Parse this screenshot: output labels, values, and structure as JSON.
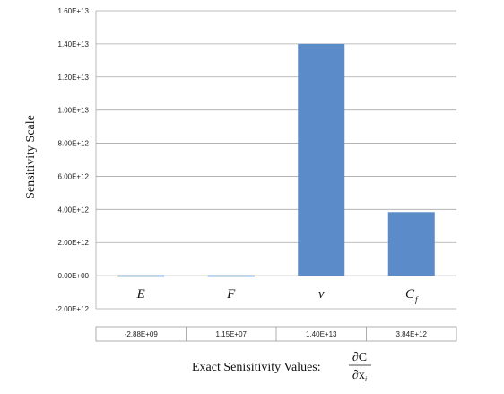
{
  "chart_data": {
    "type": "bar",
    "ylabel": "Sensitivity Scale",
    "ylim": [
      -2000000000000.0,
      16000000000000.0
    ],
    "yticks": [
      {
        "value": 16000000000000.0,
        "label": "1.60E+13"
      },
      {
        "value": 14000000000000.0,
        "label": "1.40E+13"
      },
      {
        "value": 12000000000000.0,
        "label": "1.20E+13"
      },
      {
        "value": 10000000000000.0,
        "label": "1.00E+13"
      },
      {
        "value": 8000000000000.0,
        "label": "8.00E+12"
      },
      {
        "value": 6000000000000.0,
        "label": "6.00E+12"
      },
      {
        "value": 4000000000000.0,
        "label": "4.00E+12"
      },
      {
        "value": 2000000000000.0,
        "label": "2.00E+12"
      },
      {
        "value": 0,
        "label": "0.00E+00"
      },
      {
        "value": -2000000000000.0,
        "label": "-2.00E+12"
      }
    ],
    "categories": [
      {
        "symbol": "E",
        "sub": ""
      },
      {
        "symbol": "F",
        "sub": ""
      },
      {
        "symbol": "ν",
        "sub": ""
      },
      {
        "symbol": "C",
        "sub": "f"
      }
    ],
    "values": [
      -2880000000.0,
      11500000.0,
      14000000000000.0,
      3840000000000.0
    ],
    "value_labels": [
      "-2.88E+09",
      "1.15E+07",
      "1.40E+13",
      "3.84E+12"
    ],
    "grid": true,
    "bar_color": "#5b8cc9",
    "xcaption": "Exact Senisitivity Values:",
    "xcaption_formula": {
      "numerator": "∂C",
      "denominator": "∂x",
      "denominator_sub": "i"
    }
  }
}
